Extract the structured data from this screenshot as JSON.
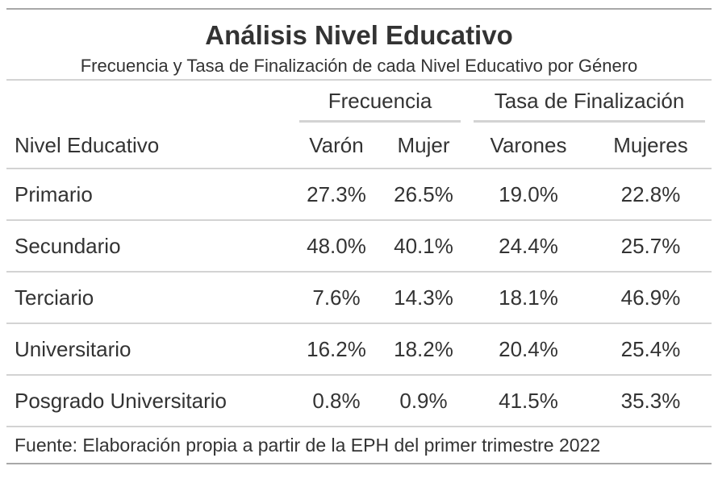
{
  "title": "Análisis Nivel Educativo",
  "subtitle": "Frecuencia y Tasa de Finalización de cada Nivel Educativo por Género",
  "spanners": [
    "Frecuencia",
    "Tasa de Finalización"
  ],
  "columns": [
    "Nivel Educativo",
    "Varón",
    "Mujer",
    "Varones",
    "Mujeres"
  ],
  "rows": [
    {
      "nivel": "Primario",
      "varon": "27.3%",
      "mujer": "26.5%",
      "varones": "19.0%",
      "mujeres": "22.8%"
    },
    {
      "nivel": "Secundario",
      "varon": "48.0%",
      "mujer": "40.1%",
      "varones": "24.4%",
      "mujeres": "25.7%"
    },
    {
      "nivel": "Terciario",
      "varon": "7.6%",
      "mujer": "14.3%",
      "varones": "18.1%",
      "mujeres": "46.9%"
    },
    {
      "nivel": "Universitario",
      "varon": "16.2%",
      "mujer": "18.2%",
      "varones": "20.4%",
      "mujeres": "25.4%"
    },
    {
      "nivel": "Posgrado Universitario",
      "varon": "0.8%",
      "mujer": "0.9%",
      "varones": "41.5%",
      "mujeres": "35.3%"
    }
  ],
  "footer": "Fuente: Elaboración propia a partir de la EPH del primer trimestre 2022"
}
